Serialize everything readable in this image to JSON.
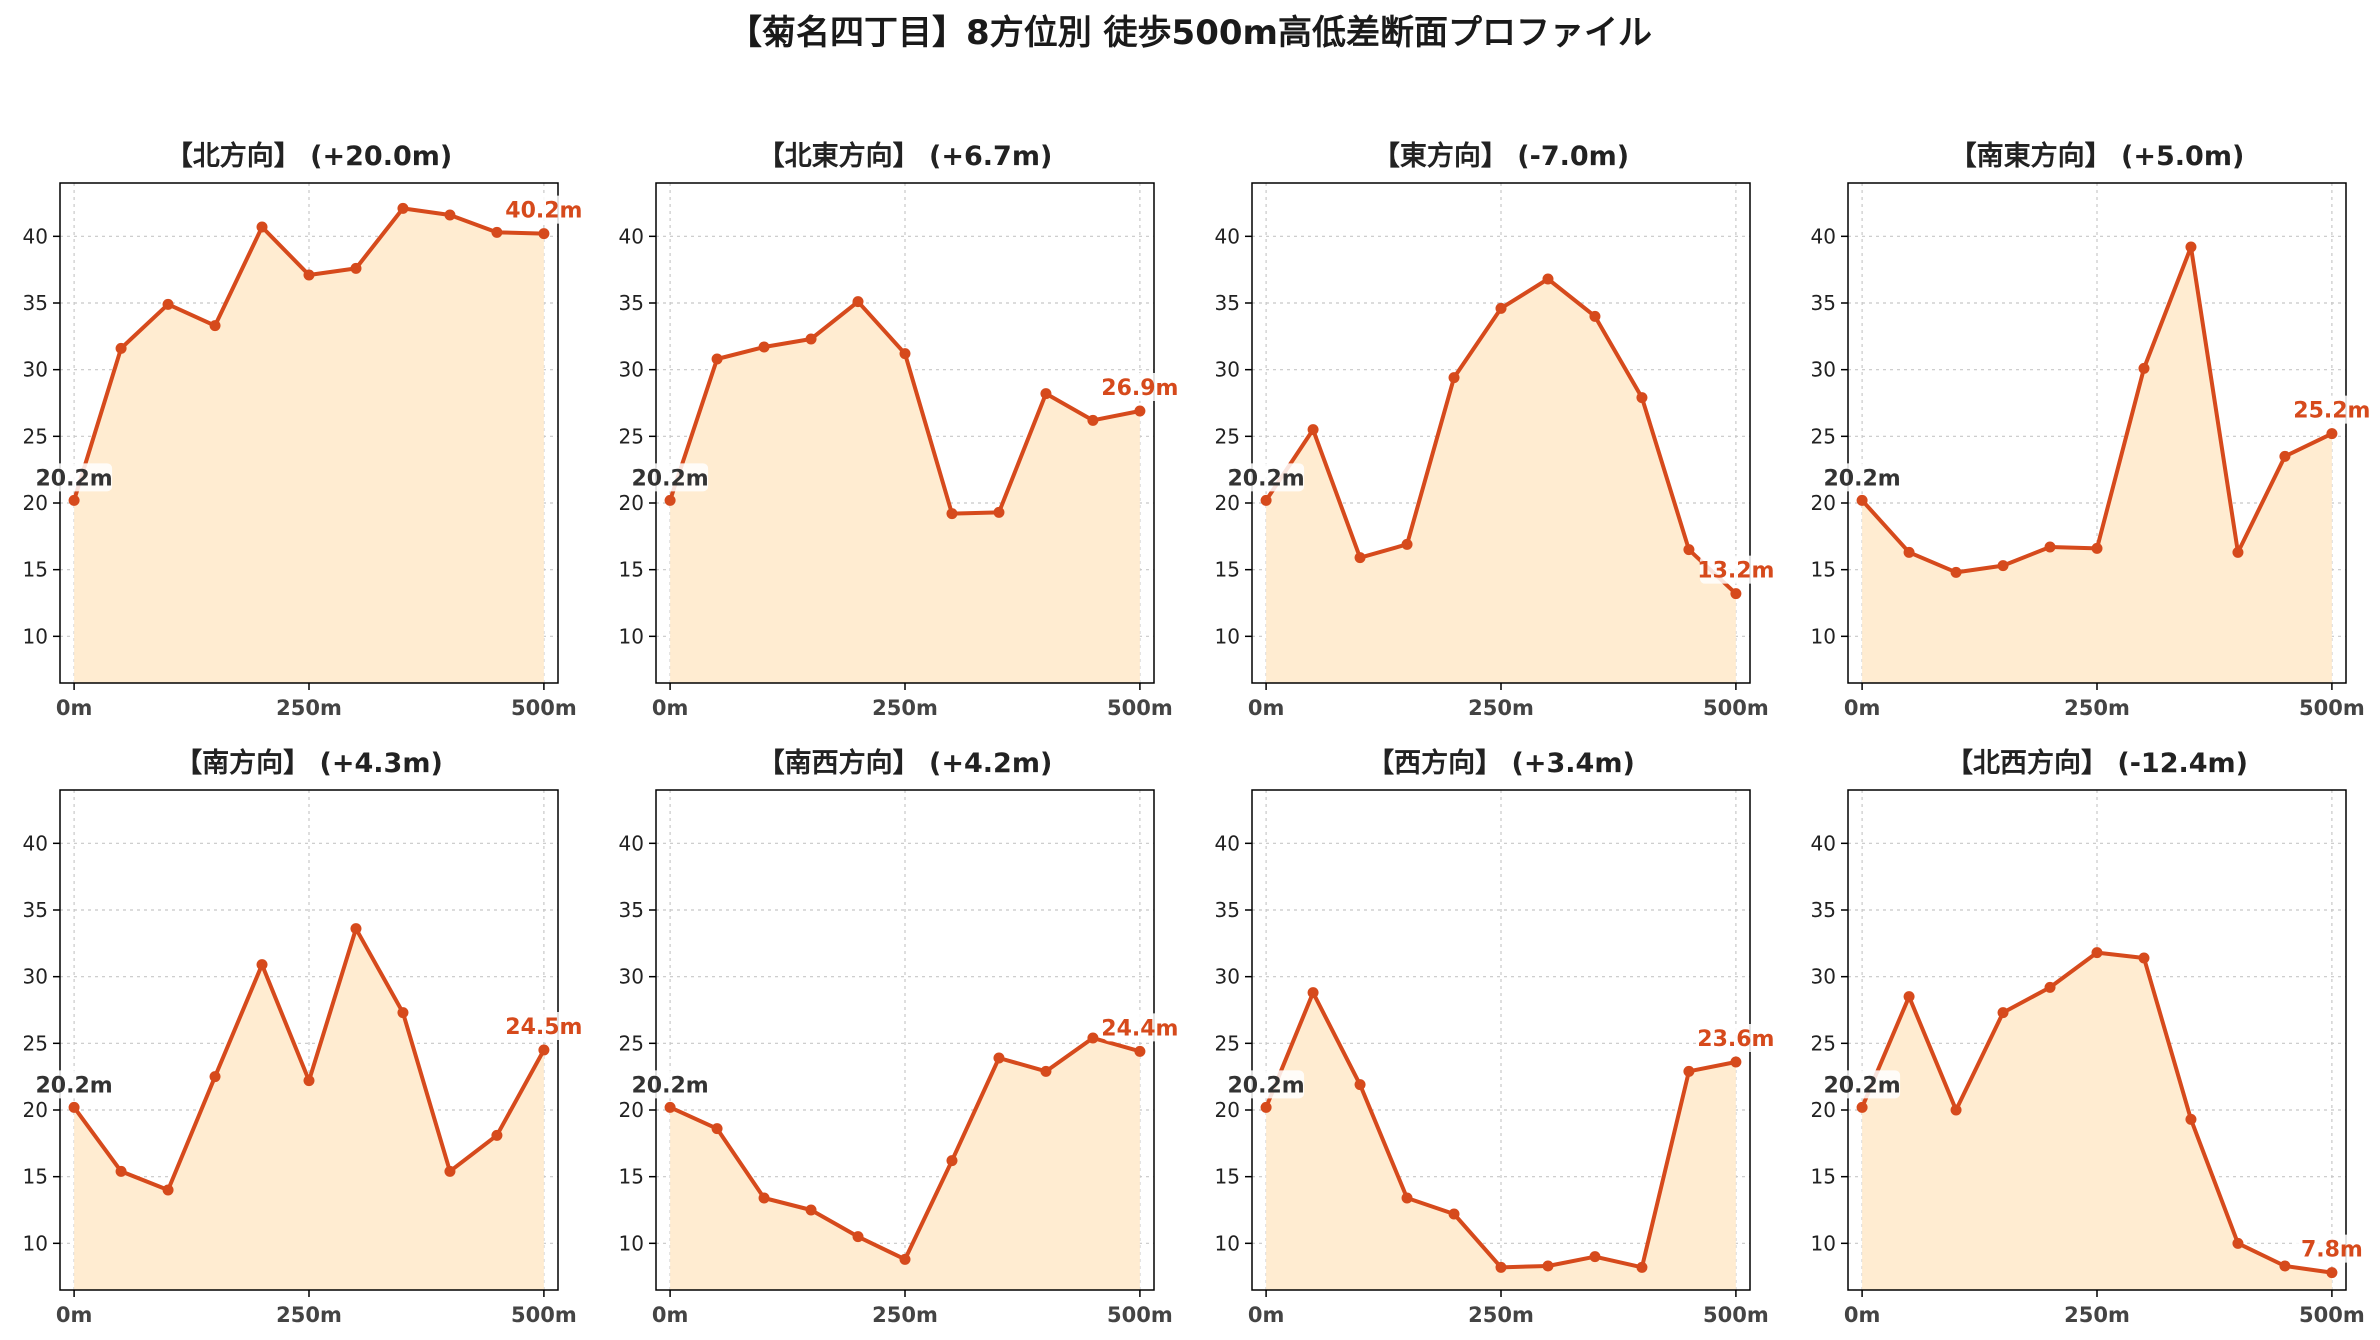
{
  "title": "【菊名四丁目】8方位別 徒歩500m高低差断面プロファイル",
  "colors": {
    "line": "#d64a1c",
    "fill": "#ffecd1",
    "grid": "#c8c8c8",
    "axis": "#000000",
    "start_label": "#333333",
    "end_label": "#d64a1c"
  },
  "chart_data": [
    {
      "type": "area",
      "title": "【北方向】 (+20.0m)",
      "x": [
        0,
        50,
        100,
        150,
        200,
        250,
        300,
        350,
        400,
        450,
        500
      ],
      "values": [
        20.2,
        31.6,
        34.9,
        33.3,
        40.7,
        37.1,
        37.6,
        42.1,
        41.6,
        40.3,
        40.2
      ],
      "xticks": [
        "0m",
        "250m",
        "500m"
      ],
      "yticks": [
        10,
        15,
        20,
        25,
        30,
        35,
        40
      ],
      "start_label": "20.2m",
      "end_label": "40.2m",
      "ylim": [
        6.5,
        44
      ],
      "xlim": [
        -15,
        515
      ],
      "grid": true
    },
    {
      "type": "area",
      "title": "【北東方向】 (+6.7m)",
      "x": [
        0,
        50,
        100,
        150,
        200,
        250,
        300,
        350,
        400,
        450,
        500
      ],
      "values": [
        20.2,
        30.8,
        31.7,
        32.3,
        35.1,
        31.2,
        19.2,
        19.3,
        28.2,
        26.2,
        26.9
      ],
      "xticks": [
        "0m",
        "250m",
        "500m"
      ],
      "yticks": [
        10,
        15,
        20,
        25,
        30,
        35,
        40
      ],
      "start_label": "20.2m",
      "end_label": "26.9m",
      "ylim": [
        6.5,
        44
      ],
      "xlim": [
        -15,
        515
      ],
      "grid": true
    },
    {
      "type": "area",
      "title": "【東方向】 (-7.0m)",
      "x": [
        0,
        50,
        100,
        150,
        200,
        250,
        300,
        350,
        400,
        450,
        500
      ],
      "values": [
        20.2,
        25.5,
        15.9,
        16.9,
        29.4,
        34.6,
        36.8,
        34.0,
        27.9,
        16.5,
        13.2
      ],
      "xticks": [
        "0m",
        "250m",
        "500m"
      ],
      "yticks": [
        10,
        15,
        20,
        25,
        30,
        35,
        40
      ],
      "start_label": "20.2m",
      "end_label": "13.2m",
      "ylim": [
        6.5,
        44
      ],
      "xlim": [
        -15,
        515
      ],
      "grid": true
    },
    {
      "type": "area",
      "title": "【南東方向】 (+5.0m)",
      "x": [
        0,
        50,
        100,
        150,
        200,
        250,
        300,
        350,
        400,
        450,
        500
      ],
      "values": [
        20.2,
        16.3,
        14.8,
        15.3,
        16.7,
        16.6,
        30.1,
        39.2,
        16.3,
        23.5,
        25.2
      ],
      "xticks": [
        "0m",
        "250m",
        "500m"
      ],
      "yticks": [
        10,
        15,
        20,
        25,
        30,
        35,
        40
      ],
      "start_label": "20.2m",
      "end_label": "25.2m",
      "ylim": [
        6.5,
        44
      ],
      "xlim": [
        -15,
        515
      ],
      "grid": true
    },
    {
      "type": "area",
      "title": "【南方向】 (+4.3m)",
      "x": [
        0,
        50,
        100,
        150,
        200,
        250,
        300,
        350,
        400,
        450,
        500
      ],
      "values": [
        20.2,
        15.4,
        14.0,
        22.5,
        30.9,
        22.2,
        33.6,
        27.3,
        15.4,
        18.1,
        24.5
      ],
      "xticks": [
        "0m",
        "250m",
        "500m"
      ],
      "yticks": [
        10,
        15,
        20,
        25,
        30,
        35,
        40
      ],
      "start_label": "20.2m",
      "end_label": "24.5m",
      "ylim": [
        6.5,
        44
      ],
      "xlim": [
        -15,
        515
      ],
      "grid": true
    },
    {
      "type": "area",
      "title": "【南西方向】 (+4.2m)",
      "x": [
        0,
        50,
        100,
        150,
        200,
        250,
        300,
        350,
        400,
        450,
        500
      ],
      "values": [
        20.2,
        18.6,
        13.4,
        12.5,
        10.5,
        8.8,
        16.2,
        23.9,
        22.9,
        25.4,
        24.4
      ],
      "xticks": [
        "0m",
        "250m",
        "500m"
      ],
      "yticks": [
        10,
        15,
        20,
        25,
        30,
        35,
        40
      ],
      "start_label": "20.2m",
      "end_label": "24.4m",
      "ylim": [
        6.5,
        44
      ],
      "xlim": [
        -15,
        515
      ],
      "grid": true
    },
    {
      "type": "area",
      "title": "【西方向】 (+3.4m)",
      "x": [
        0,
        50,
        100,
        150,
        200,
        250,
        300,
        350,
        400,
        450,
        500
      ],
      "values": [
        20.2,
        28.8,
        21.9,
        13.4,
        12.2,
        8.2,
        8.3,
        9.0,
        8.2,
        22.9,
        23.6
      ],
      "xticks": [
        "0m",
        "250m",
        "500m"
      ],
      "yticks": [
        10,
        15,
        20,
        25,
        30,
        35,
        40
      ],
      "start_label": "20.2m",
      "end_label": "23.6m",
      "ylim": [
        6.5,
        44
      ],
      "xlim": [
        -15,
        515
      ],
      "grid": true
    },
    {
      "type": "area",
      "title": "【北西方向】 (-12.4m)",
      "x": [
        0,
        50,
        100,
        150,
        200,
        250,
        300,
        350,
        400,
        450,
        500
      ],
      "values": [
        20.2,
        28.5,
        20.0,
        27.3,
        29.2,
        31.8,
        31.4,
        19.3,
        10.0,
        8.3,
        7.8
      ],
      "xticks": [
        "0m",
        "250m",
        "500m"
      ],
      "yticks": [
        10,
        15,
        20,
        25,
        30,
        35,
        40
      ],
      "start_label": "20.2m",
      "end_label": "7.8m",
      "ylim": [
        6.5,
        44
      ],
      "xlim": [
        -15,
        515
      ],
      "grid": true
    }
  ]
}
